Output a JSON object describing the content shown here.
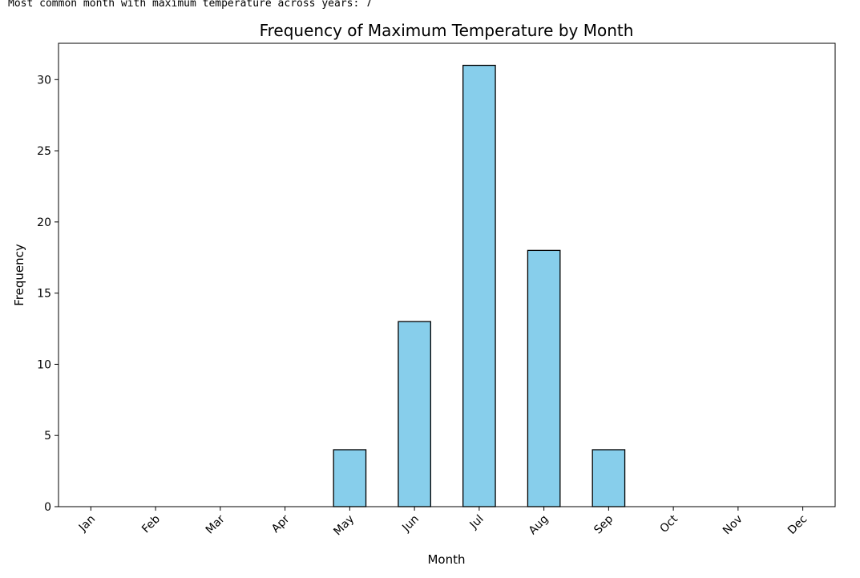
{
  "output": {
    "text": "Most common month with maximum temperature across years: 7"
  },
  "chart_data": {
    "type": "bar",
    "title": "Frequency of Maximum Temperature by Month",
    "xlabel": "Month",
    "ylabel": "Frequency",
    "categories": [
      "Jan",
      "Feb",
      "Mar",
      "Apr",
      "May",
      "Jun",
      "Jul",
      "Aug",
      "Sep",
      "Oct",
      "Nov",
      "Dec"
    ],
    "values": [
      0,
      0,
      0,
      0,
      4,
      13,
      31,
      18,
      4,
      0,
      0,
      0
    ],
    "ylim": [
      0,
      32.55
    ],
    "yticks": [
      0,
      5,
      10,
      15,
      20,
      25,
      30
    ],
    "bar_color": "#87ceeb",
    "edge_color": "#000000",
    "grid": false,
    "legend": "none"
  }
}
